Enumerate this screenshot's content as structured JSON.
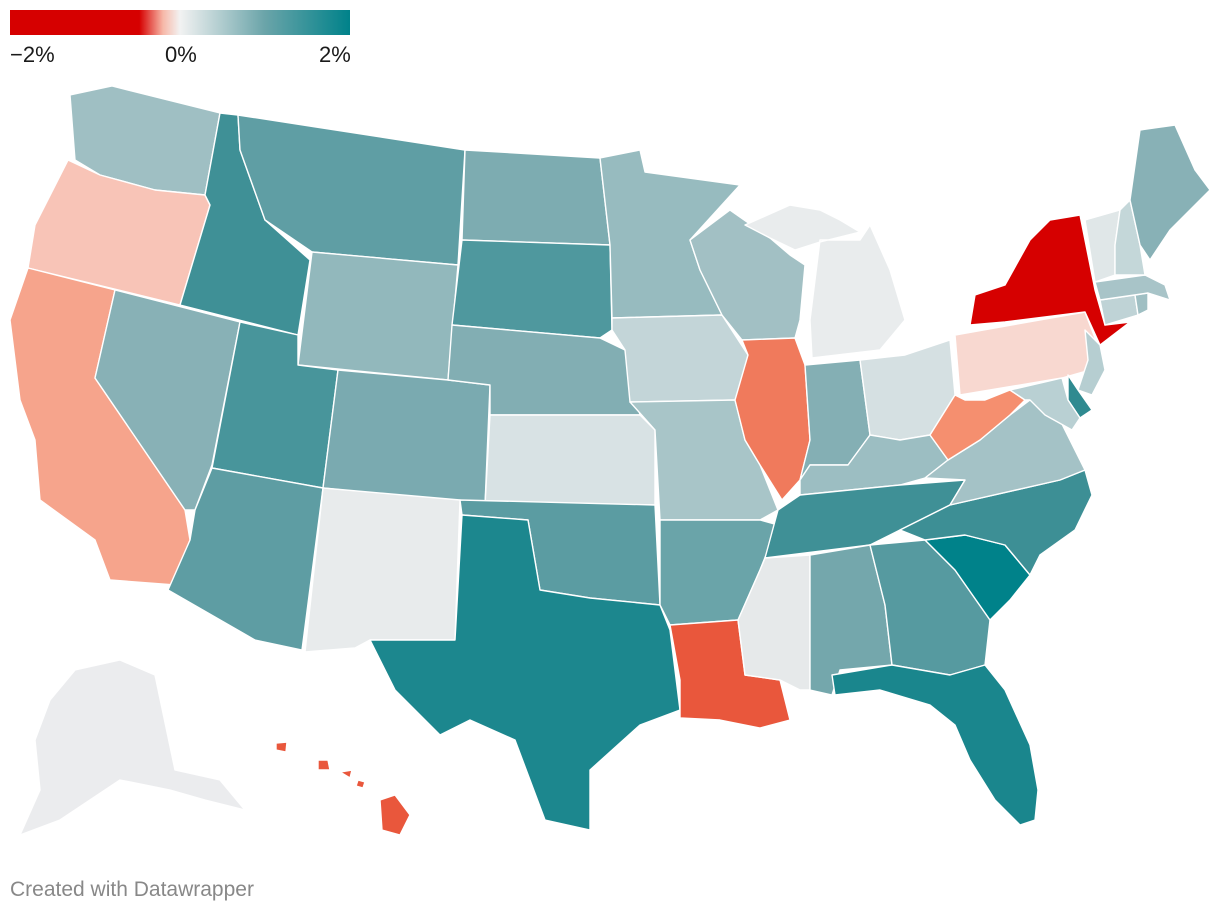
{
  "legend": {
    "min_label": "−2%",
    "mid_label": "0%",
    "max_label": "2%",
    "scale_min": -2,
    "scale_max": 2,
    "colors": {
      "negative": "#d60000",
      "neutral": "#f2f2f2",
      "positive": "#00828a"
    }
  },
  "credit": "Created with Datawrapper",
  "states": [
    {
      "id": "WA",
      "fill": "#9fbfc3"
    },
    {
      "id": "OR",
      "fill": "#f8c4b7"
    },
    {
      "id": "CA",
      "fill": "#f6a48c"
    },
    {
      "id": "ID",
      "fill": "#3f9096"
    },
    {
      "id": "NV",
      "fill": "#88b1b6"
    },
    {
      "id": "MT",
      "fill": "#5f9ea4"
    },
    {
      "id": "WY",
      "fill": "#92b8bc"
    },
    {
      "id": "UT",
      "fill": "#48959b"
    },
    {
      "id": "AZ",
      "fill": "#5e9da3"
    },
    {
      "id": "CO",
      "fill": "#7aaab0"
    },
    {
      "id": "NM",
      "fill": "#e8ebec"
    },
    {
      "id": "ND",
      "fill": "#7dacb1"
    },
    {
      "id": "SD",
      "fill": "#4f989e"
    },
    {
      "id": "NE",
      "fill": "#82aeb3"
    },
    {
      "id": "KS",
      "fill": "#d8e2e4"
    },
    {
      "id": "OK",
      "fill": "#5b9ca2"
    },
    {
      "id": "TX",
      "fill": "#1c878e"
    },
    {
      "id": "MN",
      "fill": "#97bbbf"
    },
    {
      "id": "IA",
      "fill": "#c3d5d8"
    },
    {
      "id": "MO",
      "fill": "#a8c5c8"
    },
    {
      "id": "AR",
      "fill": "#6aa4a9"
    },
    {
      "id": "LA",
      "fill": "#e9573c"
    },
    {
      "id": "WI",
      "fill": "#a2c0c4"
    },
    {
      "id": "IL",
      "fill": "#f07a5c"
    },
    {
      "id": "MI",
      "fill": "#e9eced"
    },
    {
      "id": "IN",
      "fill": "#84afb4"
    },
    {
      "id": "OH",
      "fill": "#d5e0e2"
    },
    {
      "id": "KY",
      "fill": "#9cbec2"
    },
    {
      "id": "TN",
      "fill": "#3f9096"
    },
    {
      "id": "MS",
      "fill": "#e6e9ea"
    },
    {
      "id": "AL",
      "fill": "#74a7ac"
    },
    {
      "id": "GA",
      "fill": "#569aa0"
    },
    {
      "id": "FL",
      "fill": "#1a868d"
    },
    {
      "id": "SC",
      "fill": "#00828a"
    },
    {
      "id": "NC",
      "fill": "#3d8f95"
    },
    {
      "id": "VA",
      "fill": "#a4c2c6"
    },
    {
      "id": "WV",
      "fill": "#f58f6f"
    },
    {
      "id": "PA",
      "fill": "#f8d8d0"
    },
    {
      "id": "NY",
      "fill": "#d60000"
    },
    {
      "id": "NJ",
      "fill": "#b6ced1"
    },
    {
      "id": "DE",
      "fill": "#2f8a90"
    },
    {
      "id": "MD",
      "fill": "#b9d0d3"
    },
    {
      "id": "CT",
      "fill": "#bfd3d6"
    },
    {
      "id": "RI",
      "fill": "#9fbfc3"
    },
    {
      "id": "MA",
      "fill": "#a8c4c8"
    },
    {
      "id": "VT",
      "fill": "#e0e7e8"
    },
    {
      "id": "NH",
      "fill": "#c4d7d9"
    },
    {
      "id": "ME",
      "fill": "#88b1b6"
    },
    {
      "id": "AK",
      "fill": "#ebecee"
    },
    {
      "id": "HI",
      "fill": "#e9573c"
    }
  ]
}
